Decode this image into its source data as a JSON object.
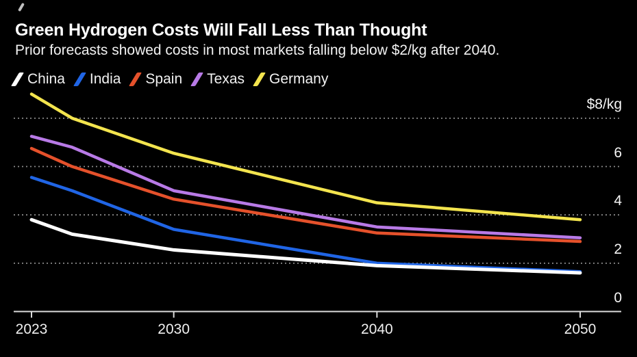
{
  "page": {
    "background": "#000000"
  },
  "header": {
    "title": "Green Hydrogen Costs Will Fall Less Than Thought",
    "subtitle": "Prior forecasts showed costs in most markets falling below $2/kg after 2040."
  },
  "legend": [
    {
      "label": "China",
      "color": "#ffffff"
    },
    {
      "label": "India",
      "color": "#2065e5"
    },
    {
      "label": "Spain",
      "color": "#e5512b"
    },
    {
      "label": "Texas",
      "color": "#b87ae6"
    },
    {
      "label": "Germany",
      "color": "#f3e44e"
    }
  ],
  "chart_data": {
    "type": "line",
    "title": "Green Hydrogen Costs Will Fall Less Than Thought",
    "subtitle": "Prior forecasts showed costs in most markets falling below $2/kg after 2040.",
    "x": [
      2023,
      2025,
      2030,
      2040,
      2050
    ],
    "series": [
      {
        "name": "China",
        "color": "#ffffff",
        "values": [
          3.8,
          3.2,
          2.55,
          1.9,
          1.6
        ]
      },
      {
        "name": "India",
        "color": "#2065e5",
        "values": [
          5.55,
          5.0,
          3.4,
          2.0,
          1.65
        ]
      },
      {
        "name": "Spain",
        "color": "#e5512b",
        "values": [
          6.75,
          6.0,
          4.65,
          3.25,
          2.9
        ]
      },
      {
        "name": "Texas",
        "color": "#b87ae6",
        "values": [
          7.25,
          6.8,
          5.0,
          3.5,
          3.05
        ]
      },
      {
        "name": "Germany",
        "color": "#f3e44e",
        "values": [
          9.0,
          8.0,
          6.55,
          4.5,
          3.8
        ]
      }
    ],
    "y_ticks": [
      {
        "value": 8,
        "label": "$8/kg"
      },
      {
        "value": 6,
        "label": "6"
      },
      {
        "value": 4,
        "label": "4"
      },
      {
        "value": 2,
        "label": "2"
      },
      {
        "value": 0,
        "label": "0"
      }
    ],
    "x_ticks": [
      {
        "value": 2023,
        "label": "2023"
      },
      {
        "value": 2030,
        "label": "2030"
      },
      {
        "value": 2040,
        "label": "2040"
      },
      {
        "value": 2050,
        "label": "2050"
      }
    ],
    "xlim": [
      2023,
      2050
    ],
    "ylim": [
      0,
      9.3
    ],
    "unit": "$/kg",
    "grid": "horizontal dotted",
    "legend_position": "top-left",
    "colors": {
      "background": "#000000",
      "axis": "#dcdcdc",
      "grid": "#8c8c8c",
      "text": "#f5f5f5"
    }
  }
}
